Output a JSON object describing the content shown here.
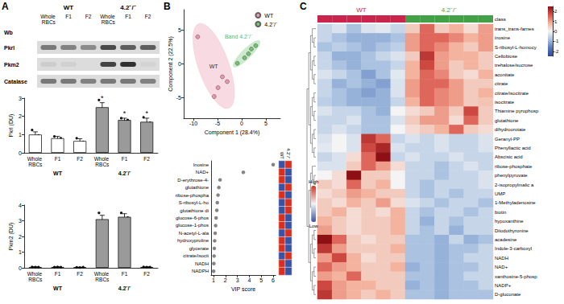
{
  "panels": [
    "A",
    "B",
    "C"
  ],
  "blot": {
    "label": "Wb",
    "groups": [
      "WT",
      "4.2⁻/⁻"
    ],
    "lanes": [
      "Whole RBCs",
      "F1",
      "F2",
      "Whole RBCs",
      "F1",
      "F2"
    ],
    "rows": [
      {
        "label": "Pkrl",
        "bands": [
          0.55,
          0.5,
          0.45,
          0.8,
          0.7,
          0.7
        ]
      },
      {
        "label": "Pkm2",
        "bands": [
          0.08,
          0.06,
          0.0,
          0.85,
          0.95,
          0.05
        ]
      },
      {
        "label": "Catalase",
        "bands": [
          0.55,
          0.55,
          0.5,
          0.55,
          0.55,
          0.5
        ]
      }
    ]
  },
  "chart_data": [
    {
      "type": "bar",
      "ylabel": "Pkrl (DU)",
      "categories": [
        "Whole RBCs",
        "F1",
        "F2",
        "Whole RBCs",
        "F1",
        "F2"
      ],
      "groups": [
        "WT",
        "4.2⁻/⁻"
      ],
      "values": [
        1.0,
        0.8,
        0.65,
        2.5,
        1.8,
        1.7
      ],
      "errors": [
        0.15,
        0.1,
        0.12,
        0.25,
        0.1,
        0.2
      ],
      "points": [
        [
          1.25,
          0.85,
          0.95
        ],
        [
          0.9,
          0.7,
          0.8
        ],
        [
          0.8,
          0.55,
          0.6
        ],
        [
          2.9,
          2.3,
          2.4
        ],
        [
          1.9,
          1.7,
          1.8
        ],
        [
          1.95,
          1.5,
          1.65
        ]
      ],
      "significance": [
        null,
        null,
        null,
        "*",
        "*",
        "*"
      ],
      "colors": [
        "#ffffff",
        "#ffffff",
        "#ffffff",
        "#9a9a9a",
        "#9a9a9a",
        "#9a9a9a"
      ],
      "ylim": [
        0,
        3
      ],
      "yticks": [
        0,
        1,
        2,
        3
      ],
      "grid": false
    },
    {
      "type": "bar",
      "ylabel": "Pkm2 (DU)",
      "categories": [
        "Whole RBCs",
        "F1",
        "F2",
        "Whole RBCs",
        "F1",
        "F2"
      ],
      "groups": [
        "WT",
        "4.2⁻/⁻"
      ],
      "values": [
        0.05,
        0.05,
        0.03,
        3.1,
        3.25,
        0.05
      ],
      "errors": [
        0.02,
        0.02,
        0.01,
        0.25,
        0.2,
        0.02
      ],
      "points": [
        [
          0.06,
          0.04,
          0.05
        ],
        [
          0.05,
          0.06,
          0.04
        ],
        [
          0.03,
          0.02,
          0.04
        ],
        [
          3.5,
          2.9,
          2.9
        ],
        [
          3.5,
          3.1,
          3.2
        ],
        [
          0.06,
          0.04,
          0.05
        ]
      ],
      "colors": [
        "#ffffff",
        "#ffffff",
        "#ffffff",
        "#9a9a9a",
        "#9a9a9a",
        "#9a9a9a"
      ],
      "ylim": [
        0,
        4
      ],
      "yticks": [
        0,
        1,
        2,
        3,
        4
      ],
      "grid": false
    },
    {
      "type": "scatter",
      "xlabel": "Component 1 (28.4%)",
      "ylabel": "Component 2 (22.5%)",
      "series": [
        {
          "name": "WT",
          "color": "#e8849e",
          "marker": "circle",
          "x": [
            -9.1,
            -4.0,
            -3.0,
            -4.9,
            -5.7
          ],
          "values": [
            4.0,
            -1.9,
            -2.6,
            -3.5,
            -4.8
          ]
        },
        {
          "name": "4.2⁻/⁻",
          "color": "#5cb85c",
          "marker": "circle",
          "x": [
            -0.9,
            0.6,
            1.4,
            2.0,
            2.9
          ],
          "values": [
            0.1,
            0.9,
            1.5,
            2.2,
            2.7
          ]
        }
      ],
      "ellipses": [
        {
          "series": "WT",
          "label": "WT",
          "cx": -5.8,
          "cy": -0.3,
          "rx": 7,
          "ry": 3,
          "angle": -60.8
        },
        {
          "series": "4.2⁻/⁻",
          "label": "Band 4.2⁻/⁻",
          "cx": 1.0,
          "cy": 1.5,
          "rx": 3.3,
          "ry": 0.8,
          "angle": 34
        }
      ],
      "xlim": [
        -12,
        8
      ],
      "xticks": [
        -10,
        -5,
        0,
        5
      ],
      "ylim": [
        -8,
        8
      ],
      "yticks": [
        -5,
        0,
        5
      ],
      "legend": "top-right",
      "grid": false
    },
    {
      "type": "scatter",
      "xlabel": "VIP score",
      "categories": [
        "Inosine",
        "NAD+",
        "D-erythrose-4-",
        "glutathione",
        "ribose-phospha",
        "S-ribosyl-L-ho",
        "glutathione di",
        "glucose-6-phos",
        "glucose-1-phos",
        "N-acetyl-L-ala",
        "hydroxyproline",
        "glycerate",
        "citrate/isocit",
        "NADH",
        "NADPH"
      ],
      "values": [
        6.0,
        3.5,
        1.55,
        1.45,
        1.38,
        1.32,
        1.28,
        1.22,
        1.18,
        1.14,
        1.1,
        1.07,
        1.05,
        1.03,
        1.01
      ],
      "color": "#666666",
      "marker": "circle",
      "xlim": [
        0.8,
        6.2
      ],
      "xticks": [
        1,
        2,
        3,
        4,
        5,
        6
      ],
      "grid": false,
      "heat": {
        "columns": [
          "WT",
          "4.2⁻/⁻"
        ],
        "cells": [
          [
            -1,
            1
          ],
          [
            1,
            -1
          ],
          [
            1,
            -1
          ],
          [
            -1,
            1
          ],
          [
            1,
            -1
          ],
          [
            -1,
            1
          ],
          [
            -1,
            1
          ],
          [
            1,
            -1
          ],
          [
            1,
            -1
          ],
          [
            -1,
            1
          ],
          [
            1,
            -1
          ],
          [
            1,
            -1
          ],
          [
            -1,
            1
          ],
          [
            1,
            -1
          ],
          [
            1,
            -1
          ]
        ],
        "range": [
          -1,
          1
        ],
        "range_labels": [
          "Low",
          "High"
        ],
        "colors": [
          "#3953a4",
          "#f2f2f2",
          "#d7301f"
        ]
      }
    },
    {
      "type": "heatmap",
      "rows": [
        "trans_trans-farnes",
        "inosine",
        "S-ribosyl-L-homocy",
        "Cellobiose",
        "trehalose/sucrose",
        "aconitate",
        "citrate",
        "citrate/isocitrate",
        "isocitrate",
        "Thiamine pyrophosp",
        "glutathione",
        "dihydroorotate",
        "Geranyl-PP",
        "Phenyllactic acid",
        "Abscisic acid",
        "ribose-phosphate",
        "phenylpyruvate",
        "2-isopropylmalic a",
        "UMP",
        "1-Methyladenosine",
        "biotin",
        "hypoxanthine",
        "Diiodothyronine",
        "acadesine",
        "Indole-3-carboxyl",
        "NADH",
        "NAD+",
        "xanthosine-5-phosp",
        "NADP+",
        "D-gluconate"
      ],
      "groups": [
        "WT",
        "4.2⁻/⁻"
      ],
      "group_colors": [
        "#c8244c",
        "#43a047"
      ],
      "column_groups": [
        "WT",
        "WT",
        "WT",
        "WT",
        "WT",
        "WT",
        "4.2⁻/⁻",
        "4.2⁻/⁻",
        "4.2⁻/⁻",
        "4.2⁻/⁻",
        "4.2⁻/⁻",
        "4.2⁻/⁻"
      ],
      "class_label": "class",
      "cells": [
        [
          -0.5,
          -0.3,
          -0.8,
          -0.3,
          -0.2,
          -0.5,
          0.5,
          1.5,
          0.5,
          0.8,
          0.3,
          1.0
        ],
        [
          -0.5,
          -0.8,
          -1.0,
          -1.0,
          -1.0,
          -0.8,
          1.0,
          1.5,
          1.5,
          1.2,
          0.8,
          1.0
        ],
        [
          -0.8,
          -0.6,
          -0.8,
          -1.0,
          -0.8,
          -0.6,
          1.0,
          1.5,
          1.2,
          0.8,
          0.5,
          1.0
        ],
        [
          -0.5,
          -1.0,
          -1.0,
          -0.8,
          -0.5,
          -0.3,
          0.5,
          2.0,
          1.0,
          0.8,
          0.8,
          0.5
        ],
        [
          -0.5,
          -0.8,
          -1.0,
          -0.8,
          -0.8,
          -0.5,
          0.8,
          1.8,
          1.0,
          0.5,
          0.8,
          0.5
        ],
        [
          -0.3,
          -0.5,
          -0.8,
          -1.2,
          -0.8,
          -0.2,
          0.8,
          1.5,
          1.2,
          0.5,
          0.3,
          0.8
        ],
        [
          -0.5,
          -1.0,
          -0.8,
          -1.0,
          -1.2,
          -0.3,
          1.0,
          1.5,
          1.5,
          1.0,
          0.5,
          0.5
        ],
        [
          -0.5,
          -0.8,
          -1.0,
          -1.2,
          -1.0,
          -0.3,
          1.0,
          1.5,
          1.2,
          1.0,
          0.5,
          0.8
        ],
        [
          -0.6,
          -0.8,
          -1.0,
          -1.0,
          -1.0,
          -0.5,
          0.8,
          1.5,
          1.2,
          1.0,
          0.5,
          0.6
        ],
        [
          -0.3,
          -0.5,
          -0.5,
          -0.8,
          -1.0,
          0.0,
          0.3,
          0.5,
          1.0,
          0.5,
          1.8,
          0.5
        ],
        [
          -0.5,
          -0.5,
          -0.3,
          -0.8,
          -0.8,
          -0.3,
          0.5,
          1.0,
          1.0,
          0.3,
          1.5,
          0.5
        ],
        [
          -0.5,
          -0.3,
          -0.5,
          -0.8,
          -0.8,
          0.0,
          0.3,
          0.5,
          0.8,
          1.5,
          0.5,
          0.3
        ],
        [
          -0.3,
          0.0,
          -0.3,
          2.0,
          1.5,
          -0.5,
          -0.3,
          -0.5,
          -0.3,
          -0.5,
          -0.5,
          -0.3
        ],
        [
          -0.2,
          0.0,
          -0.3,
          1.8,
          2.2,
          -0.3,
          -0.5,
          -0.5,
          -0.3,
          -0.5,
          -0.5,
          -0.3
        ],
        [
          -0.5,
          -0.3,
          0.3,
          1.5,
          2.5,
          -0.5,
          -0.3,
          -0.5,
          -0.5,
          -0.3,
          -0.5,
          -0.5
        ],
        [
          -0.3,
          -0.3,
          0.5,
          1.5,
          1.0,
          0.3,
          -0.5,
          -0.5,
          -0.8,
          -0.5,
          -0.3,
          -0.5
        ],
        [
          0.0,
          0.3,
          2.5,
          0.5,
          0.5,
          0.0,
          -0.5,
          -0.5,
          -0.8,
          -0.5,
          -0.5,
          -0.3
        ],
        [
          0.5,
          0.3,
          1.5,
          0.5,
          0.8,
          0.0,
          -0.5,
          -0.8,
          -0.5,
          -0.5,
          -0.5,
          -0.3
        ],
        [
          0.3,
          0.5,
          1.0,
          0.8,
          0.5,
          0.5,
          -0.5,
          -0.8,
          -0.5,
          -0.8,
          -0.5,
          -0.5
        ],
        [
          0.5,
          0.3,
          0.8,
          0.5,
          1.0,
          0.3,
          -0.3,
          -0.5,
          -0.8,
          -0.5,
          -0.5,
          -0.8
        ],
        [
          0.5,
          0.8,
          0.3,
          0.5,
          0.3,
          0.8,
          -0.5,
          -0.8,
          -0.5,
          -0.5,
          -0.8,
          -0.5
        ],
        [
          0.8,
          0.5,
          0.3,
          0.5,
          0.5,
          0.8,
          -0.5,
          -1.0,
          -0.5,
          -0.8,
          -0.5,
          -0.5
        ],
        [
          1.0,
          0.5,
          0.3,
          0.5,
          0.5,
          0.8,
          -0.5,
          -0.8,
          -0.5,
          -1.0,
          -0.5,
          -0.5
        ],
        [
          2.5,
          1.5,
          0.5,
          0.3,
          0.5,
          0.5,
          -0.8,
          -0.8,
          -1.0,
          -0.5,
          -1.0,
          -0.8
        ],
        [
          2.0,
          1.0,
          0.5,
          0.5,
          0.5,
          0.8,
          -0.8,
          -0.8,
          -1.0,
          -0.8,
          -0.8,
          -0.5
        ],
        [
          1.0,
          1.8,
          0.8,
          0.3,
          0.5,
          0.5,
          -0.8,
          -0.8,
          -1.0,
          -0.8,
          -0.5,
          -0.5
        ],
        [
          1.5,
          1.0,
          0.8,
          0.5,
          0.5,
          0.8,
          -1.0,
          -0.8,
          -1.0,
          -0.8,
          -0.8,
          -0.5
        ],
        [
          1.0,
          0.8,
          1.5,
          0.5,
          0.5,
          0.5,
          -0.8,
          -0.8,
          -1.0,
          -0.8,
          -0.5,
          -0.5
        ],
        [
          1.8,
          1.0,
          0.8,
          0.8,
          0.5,
          0.5,
          -1.0,
          -0.8,
          -1.0,
          -0.8,
          -0.8,
          -0.5
        ],
        [
          2.0,
          1.0,
          0.8,
          0.5,
          0.8,
          0.5,
          -0.8,
          -0.8,
          -1.0,
          -0.8,
          -0.8,
          -0.8
        ]
      ],
      "colorbar": {
        "range": [
          -2.5,
          2.5
        ],
        "ticks": [
          -2,
          -1,
          0,
          1,
          2
        ],
        "colors": [
          "#2b4a94",
          "#5577bb",
          "#a8c1e0",
          "#f4f4f4",
          "#f3b09a",
          "#d9534a",
          "#8e0f14"
        ]
      }
    }
  ]
}
